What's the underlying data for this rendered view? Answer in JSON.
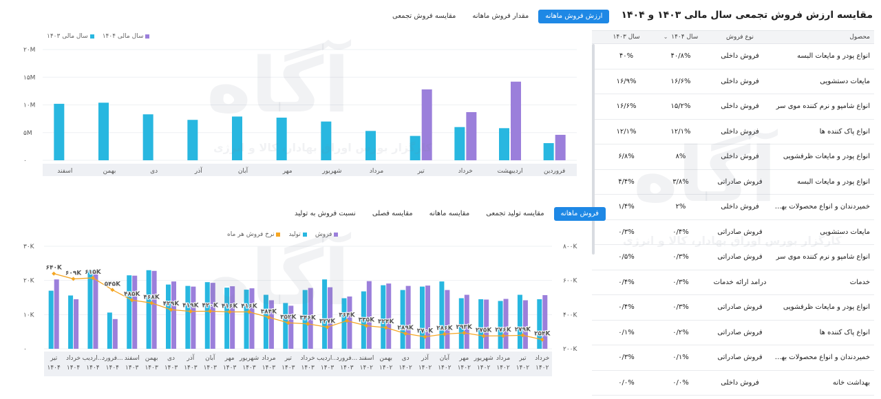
{
  "colors": {
    "accent": "#1e88e5",
    "series_1402_sales": "#28b7e0",
    "series_1404": "#9b7fdb",
    "line_rate": "#f5a623"
  },
  "right_panel": {
    "title": "مقایسه ارزش فروش تجمعی سال مالی ۱۴۰۳ و ۱۴۰۴",
    "export_icon": "excel-export-icon",
    "headers": {
      "product": "محصول",
      "type": "نوع فروش",
      "y1404": "سال ۱۴۰۴",
      "y1403": "سال ۱۴۰۳"
    },
    "rows": [
      {
        "product": "انواع پودر و مایعات البسه",
        "type": "فروش داخلی",
        "y1404": "۴۰/۸%",
        "y1403": "۴۰%"
      },
      {
        "product": "مایعات دستشویی",
        "type": "فروش داخلی",
        "y1404": "۱۶/۶%",
        "y1403": "۱۶/۹%"
      },
      {
        "product": "انواع شامپو و نرم کننده موی سر",
        "type": "فروش داخلی",
        "y1404": "۱۵/۲%",
        "y1403": "۱۶/۶%"
      },
      {
        "product": "انواع پاک کننده ها",
        "type": "فروش داخلی",
        "y1404": "۱۲/۱%",
        "y1403": "۱۲/۱%"
      },
      {
        "product": "انواع پودر و مایعات ظرفشویی",
        "type": "فروش داخلی",
        "y1404": "۸%",
        "y1403": "۶/۸%"
      },
      {
        "product": "انواع پودر و مایعات البسه",
        "type": "فروش صادراتی",
        "y1404": "۳/۸%",
        "y1403": "۴/۴%"
      },
      {
        "product": "خمیردندان و انواع محصولات بهدا...",
        "type": "فروش داخلی",
        "y1404": "۲%",
        "y1403": "۱/۴%"
      },
      {
        "product": "مایعات دستشویی",
        "type": "فروش صادراتی",
        "y1404": "۰/۴%",
        "y1403": "۰/۳%"
      },
      {
        "product": "انواع شامپو و نرم کننده موی سر",
        "type": "فروش صادراتی",
        "y1404": "۰/۳%",
        "y1403": "۰/۵%"
      },
      {
        "product": "خدمات",
        "type": "درآمد ارائه خدمات",
        "y1404": "۰/۳%",
        "y1403": "۰/۴%"
      },
      {
        "product": "انواع پودر و مایعات ظرفشویی",
        "type": "فروش صادراتی",
        "y1404": "۰/۳%",
        "y1403": "۰/۴%"
      },
      {
        "product": "انواع پاک کننده ها",
        "type": "فروش صادراتی",
        "y1404": "۰/۲%",
        "y1403": "۰/۱%"
      },
      {
        "product": "خمیردندان و انواع محصولات بهدا...",
        "type": "فروش صادراتی",
        "y1404": "۰/۱%",
        "y1403": "۰/۳%"
      },
      {
        "product": "بهداشت خانه",
        "type": "فروش داخلی",
        "y1404": "۰/۰%",
        "y1403": "۰/۰%"
      }
    ]
  },
  "top_tabs": [
    {
      "label": "ارزش فروش ماهانه",
      "active": true
    },
    {
      "label": "مقدار فروش ماهانه",
      "active": false
    },
    {
      "label": "مقایسه فروش تجمعی",
      "active": false
    }
  ],
  "bottom_tabs": [
    {
      "label": "فروش ماهانه",
      "active": true
    },
    {
      "label": "مقایسه تولید تجمعی",
      "active": false
    },
    {
      "label": "مقایسه ماهانه",
      "active": false
    },
    {
      "label": "مقایسه فصلی",
      "active": false
    },
    {
      "label": "نسبت فروش به تولید",
      "active": false
    }
  ],
  "watermark": {
    "logo": "آگاه",
    "tagline": "کارگزار بورس اوراق بهادار، کالا و انرژی"
  },
  "chart_data": [
    {
      "type": "bar",
      "legend": [
        "سال مالی ۱۴۰۴",
        "سال مالی ۱۴۰۳"
      ],
      "yticks": [
        "۲۰M",
        "۱۵M",
        "۱۰M",
        "۵M",
        "۰"
      ],
      "ylim": [
        0,
        20000000
      ],
      "categories": [
        "فروردین",
        "اردیبهشت",
        "خرداد",
        "تیر",
        "مرداد",
        "شهریور",
        "مهر",
        "آبان",
        "آذر",
        "دی",
        "بهمن",
        "اسفند"
      ],
      "series": [
        {
          "name": "سال مالی ۱۴۰۳",
          "values": [
            3100000,
            5800000,
            6000000,
            4400000,
            5300000,
            7000000,
            7700000,
            7900000,
            7300000,
            8300000,
            10400000,
            10200000
          ]
        },
        {
          "name": "سال مالی ۱۴۰۴",
          "values": [
            4600000,
            14200000,
            8700000,
            12800000,
            null,
            null,
            null,
            null,
            null,
            null,
            null,
            null
          ]
        }
      ]
    },
    {
      "type": "bar",
      "legend": [
        "فروش",
        "تولید",
        "نرخ فروش هر ماه"
      ],
      "yticks_left": [
        "۳۰K",
        "۲۰K",
        "۱۰K",
        "۰"
      ],
      "ylim_left": [
        0,
        30000
      ],
      "yticks_right": [
        "۸۰۰K",
        "۶۰۰K",
        "۴۰۰K",
        "۲۰۰K"
      ],
      "ylim_right": [
        200000,
        800000
      ],
      "categories": [
        [
          "خرداد",
          "۱۴۰۲"
        ],
        [
          "تیر",
          "۱۴۰۲"
        ],
        [
          "مرداد",
          "۱۴۰۲"
        ],
        [
          "شهریور",
          "۱۴۰۲"
        ],
        [
          "مهر",
          "۱۴۰۲"
        ],
        [
          "آبان",
          "۱۴۰۲"
        ],
        [
          "آذر",
          "۱۴۰۲"
        ],
        [
          "دی",
          "۱۴۰۲"
        ],
        [
          "بهمن",
          "۱۴۰۲"
        ],
        [
          "اسفند",
          "۱۴۰۲"
        ],
        [
          "فرورد...",
          "۱۴۰۳"
        ],
        [
          "اردیب...",
          "۱۴۰۳"
        ],
        [
          "خرداد",
          "۱۴۰۳"
        ],
        [
          "تیر",
          "۱۴۰۳"
        ],
        [
          "مرداد",
          "۱۴۰۳"
        ],
        [
          "شهریور",
          "۱۴۰۳"
        ],
        [
          "مهر",
          "۱۴۰۳"
        ],
        [
          "آبان",
          "۱۴۰۳"
        ],
        [
          "آذر",
          "۱۴۰۳"
        ],
        [
          "دی",
          "۱۴۰۳"
        ],
        [
          "بهمن",
          "۱۴۰۳"
        ],
        [
          "اسفند",
          "۱۴۰۳"
        ],
        [
          "فرورد...",
          "۱۴۰۴"
        ],
        [
          "اردیب...",
          "۱۴۰۴"
        ],
        [
          "خرداد",
          "۱۴۰۴"
        ],
        [
          "تیر",
          "۱۴۰۴"
        ]
      ],
      "series": [
        {
          "name": "تولید",
          "values": [
            14500,
            15800,
            14000,
            14500,
            14800,
            19700,
            18200,
            17200,
            18600,
            16800,
            14800,
            20300,
            17200,
            13400,
            15800,
            17300,
            17900,
            19500,
            18400,
            18800,
            23000,
            21500,
            10600,
            23000,
            15600,
            17000
          ]
        },
        {
          "name": "فروش",
          "values": [
            15700,
            14200,
            14600,
            14400,
            15800,
            17200,
            18500,
            18400,
            19100,
            19800,
            15300,
            18000,
            17800,
            12600,
            14200,
            17700,
            18300,
            19300,
            18200,
            19700,
            22800,
            21400,
            8700,
            22800,
            14500,
            20300
          ]
        },
        {
          "name": "نرخ فروش هر ماه",
          "values": [
            254000,
            279000,
            276000,
            275000,
            293000,
            286000,
            270000,
            289000,
            324000,
            335000,
            364000,
            327000,
            346000,
            352000,
            384000,
            416000,
            416000,
            420000,
            419000,
            429000,
            468000,
            485000,
            545000,
            615000,
            609000,
            640000
          ]
        }
      ],
      "line_labels": [
        "۲۵۴K",
        "۲۷۹K",
        "۲۷۶K",
        "۲۷۵K",
        "۲۹۳K",
        "۲۸۶K",
        "۲۷۰K",
        "۲۸۹K",
        "۳۲۴K",
        "۳۳۵K",
        "۳۶۴K",
        "۳۲۷K",
        "۳۴۶K",
        "۳۵۲K",
        "۳۸۴K",
        "۴۱۶K",
        "۴۱۶K",
        "۴۲۰K",
        "۴۱۹K",
        "۴۲۹K",
        "۴۶۸K",
        "۴۸۵K",
        "۵۴۵K",
        "۶۱۵K",
        "۶۰۹K",
        "۶۴۰K"
      ]
    }
  ]
}
